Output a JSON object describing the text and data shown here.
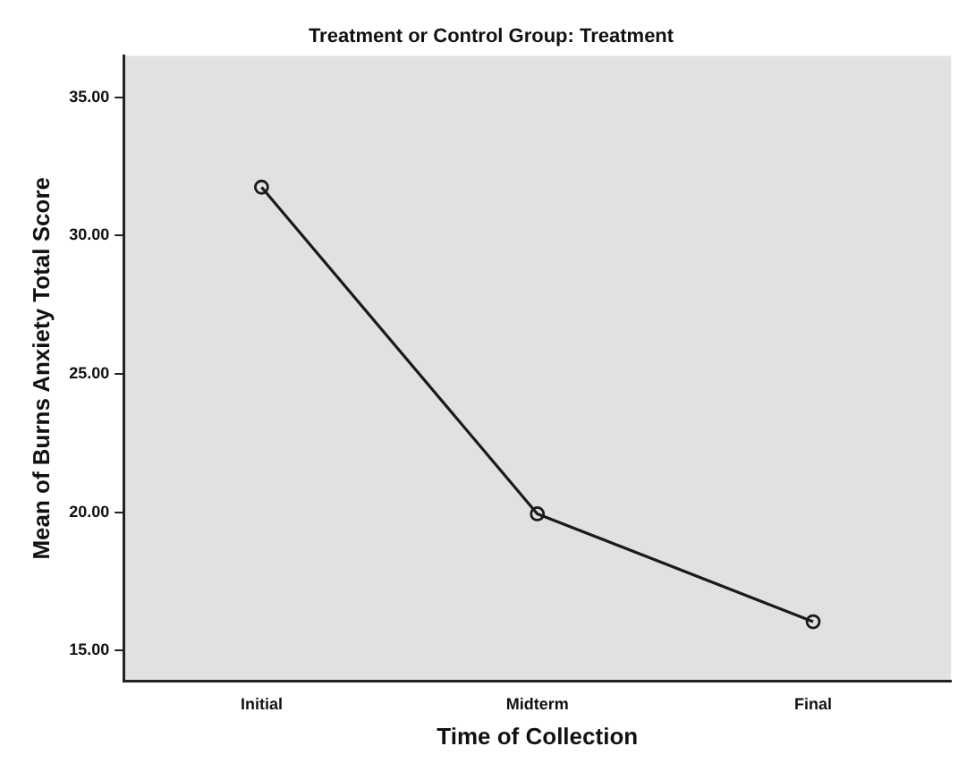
{
  "chart_data": {
    "type": "line",
    "title": "Treatment or Control Group: Treatment",
    "xlabel": "Time of Collection",
    "ylabel": "Mean of Burns Anxiety Total Score",
    "categories": [
      "Initial",
      "Midterm",
      "Final"
    ],
    "series": [
      {
        "color": "#1a1a1a",
        "values": [
          31.75,
          19.94,
          16.04
        ]
      }
    ],
    "ylim": [
      13.9,
      36.5
    ],
    "yticks": [
      {
        "value": 15,
        "label": "15.00"
      },
      {
        "value": 20,
        "label": "20.00"
      },
      {
        "value": 25,
        "label": "25.00"
      },
      {
        "value": 30,
        "label": "30.00"
      },
      {
        "value": 35,
        "label": "35.00"
      }
    ],
    "grid": false,
    "legend": false,
    "marker": "circle",
    "line_style": "solid"
  }
}
